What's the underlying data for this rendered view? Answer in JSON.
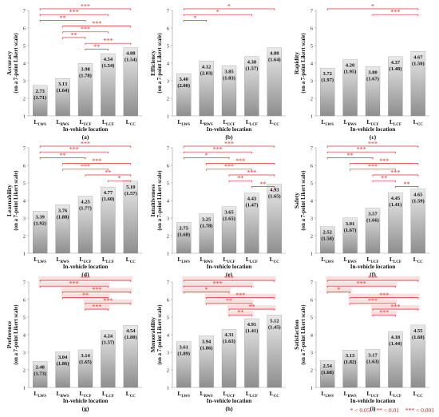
{
  "legend": {
    "p05": "* < 0.05",
    "p01": "** < 0.01",
    "p001": "*** < 0.001"
  },
  "colors": {
    "bar_top": "#e9e9e9",
    "bar_bottom": "#8e8e8e",
    "sig_line": "#e03030",
    "highlight": "#f9d9d9"
  },
  "chart_data": [
    {
      "type": "bar",
      "panel": "(a)",
      "ylabel": "Accuracy",
      "ylabel2": "(on a 7-point Likert scale)",
      "xlabel": "In-vehicle location",
      "categories": [
        "LWS",
        "RWS",
        "UCF",
        "LCF",
        "CC"
      ],
      "values": [
        2.73,
        3.13,
        3.98,
        4.54,
        4.88
      ],
      "sd": [
        1.71,
        1.64,
        1.78,
        1.54,
        1.54
      ],
      "ylim": [
        1,
        7
      ],
      "significance": [
        {
          "from": 0,
          "to": 4,
          "stars": "***"
        },
        {
          "from": 0,
          "to": 3,
          "stars": "***"
        },
        {
          "from": 0,
          "to": 2,
          "stars": "**"
        },
        {
          "from": 1,
          "to": 4,
          "stars": "***"
        },
        {
          "from": 1,
          "to": 3,
          "stars": "***"
        },
        {
          "from": 1,
          "to": 2,
          "stars": "**"
        },
        {
          "from": 2,
          "to": 4,
          "stars": "***"
        },
        {
          "from": 2,
          "to": 3,
          "stars": "**"
        }
      ]
    },
    {
      "type": "bar",
      "panel": "(b)",
      "ylabel": "Efficiency",
      "ylabel2": "(on a 7-point Likert scale)",
      "xlabel": "In-vehicle location",
      "categories": [
        "LWS",
        "RWS",
        "UCF",
        "LCF",
        "CC"
      ],
      "values": [
        3.4,
        4.12,
        3.85,
        4.38,
        4.88
      ],
      "sd": [
        2.0,
        2.03,
        1.83,
        1.57,
        1.64
      ],
      "ylim": [
        1,
        7
      ],
      "significance": [
        {
          "from": 0,
          "to": 4,
          "stars": "*"
        },
        {
          "from": 0,
          "to": 3,
          "stars": "*"
        },
        {
          "from": 0,
          "to": 1,
          "stars": "*"
        }
      ]
    },
    {
      "type": "bar",
      "panel": "(c)",
      "ylabel": "Rapidity",
      "ylabel2": "(on a 7-point Likert scale)",
      "xlabel": "In-vehicle location",
      "categories": [
        "LWS",
        "RWS",
        "UCF",
        "LCF",
        "CC"
      ],
      "values": [
        3.72,
        4.2,
        3.8,
        4.37,
        4.67
      ],
      "sd": [
        1.97,
        1.95,
        1.67,
        1.48,
        1.5
      ],
      "ylim": [
        1,
        7
      ],
      "significance": [
        {
          "from": 0,
          "to": 4,
          "stars": "*"
        },
        {
          "from": 2,
          "to": 4,
          "stars": "***"
        }
      ]
    },
    {
      "type": "bar",
      "panel": "(d)",
      "ylabel": "Learnability",
      "ylabel2": "(on a 7-point Likert scale)",
      "xlabel": "In-vehicle location",
      "categories": [
        "LWS",
        "RWS",
        "UCF",
        "LCF",
        "CC"
      ],
      "values": [
        3.39,
        3.76,
        4.25,
        4.77,
        5.1
      ],
      "sd": [
        1.92,
        1.88,
        1.77,
        1.6,
        1.57
      ],
      "ylim": [
        1,
        7
      ],
      "significance": [
        {
          "from": 0,
          "to": 4,
          "stars": "***"
        },
        {
          "from": 0,
          "to": 3,
          "stars": "***"
        },
        {
          "from": 0,
          "to": 2,
          "stars": "**"
        },
        {
          "from": 1,
          "to": 4,
          "stars": "***"
        },
        {
          "from": 1,
          "to": 3,
          "stars": "***"
        },
        {
          "from": 2,
          "to": 4,
          "stars": "**"
        },
        {
          "from": 3,
          "to": 4,
          "stars": "*"
        }
      ]
    },
    {
      "type": "bar",
      "panel": "(e)",
      "ylabel": "Intuitiveness",
      "ylabel2": "(on a 7-point Likert scale)",
      "xlabel": "In-vehicle location",
      "categories": [
        "LWS",
        "RWS",
        "UCF",
        "LCF",
        "CC"
      ],
      "values": [
        2.75,
        3.25,
        3.65,
        4.43,
        4.93
      ],
      "sd": [
        1.68,
        1.78,
        1.65,
        1.47,
        1.65
      ],
      "ylim": [
        1,
        7
      ],
      "significance": [
        {
          "from": 0,
          "to": 4,
          "stars": "***"
        },
        {
          "from": 0,
          "to": 3,
          "stars": "***"
        },
        {
          "from": 0,
          "to": 2,
          "stars": "*"
        },
        {
          "from": 1,
          "to": 4,
          "stars": "***"
        },
        {
          "from": 1,
          "to": 3,
          "stars": "***"
        },
        {
          "from": 2,
          "to": 4,
          "stars": "***"
        },
        {
          "from": 2,
          "to": 3,
          "stars": "**"
        },
        {
          "from": 3,
          "to": 4,
          "stars": "**"
        }
      ]
    },
    {
      "type": "bar",
      "panel": "(f)",
      "ylabel": "Safety",
      "ylabel2": "(on a 7-point Likert scale)",
      "xlabel": "In-vehicle location",
      "categories": [
        "LWS",
        "RWS",
        "UCF",
        "LCF",
        "CC"
      ],
      "values": [
        2.52,
        3.01,
        3.57,
        4.45,
        4.65
      ],
      "sd": [
        1.58,
        1.67,
        1.66,
        1.41,
        1.59
      ],
      "ylim": [
        1,
        7
      ],
      "significance": [
        {
          "from": 0,
          "to": 4,
          "stars": "***"
        },
        {
          "from": 0,
          "to": 3,
          "stars": "***"
        },
        {
          "from": 0,
          "to": 2,
          "stars": "**"
        },
        {
          "from": 1,
          "to": 4,
          "stars": "***"
        },
        {
          "from": 1,
          "to": 3,
          "stars": "***"
        },
        {
          "from": 2,
          "to": 4,
          "stars": "***"
        },
        {
          "from": 2,
          "to": 3,
          "stars": "**"
        },
        {
          "from": 3,
          "to": 4,
          "stars": "**"
        }
      ]
    },
    {
      "type": "bar",
      "panel": "(g)",
      "ylabel": "Preference",
      "ylabel2": "(on a 7-point Likert scale)",
      "xlabel": "In-vehicle location",
      "categories": [
        "LWS",
        "RWS",
        "UCF",
        "LCF",
        "CC"
      ],
      "values": [
        2.48,
        3.04,
        3.14,
        4.24,
        4.54
      ],
      "sd": [
        1.73,
        1.86,
        1.65,
        1.57,
        1.8
      ],
      "ylim": [
        1,
        7
      ],
      "significance": [
        {
          "from": 0,
          "to": 4,
          "stars": "***"
        },
        {
          "from": 0,
          "to": 3,
          "stars": "***"
        },
        {
          "from": 1,
          "to": 4,
          "stars": "***"
        },
        {
          "from": 1,
          "to": 3,
          "stars": "**"
        },
        {
          "from": 2,
          "to": 4,
          "stars": "***"
        },
        {
          "from": 2,
          "to": 3,
          "stars": "***"
        }
      ]
    },
    {
      "type": "bar",
      "panel": "(h)",
      "ylabel": "Memorability",
      "ylabel2": "(on a 7-point Likert scale)",
      "xlabel": "In-vehicle location",
      "categories": [
        "LWS",
        "RWS",
        "UCF",
        "LCF",
        "CC"
      ],
      "values": [
        3.61,
        3.94,
        4.31,
        4.91,
        5.12
      ],
      "sd": [
        1.89,
        1.86,
        1.63,
        1.41,
        1.45
      ],
      "ylim": [
        1,
        7
      ],
      "significance": [
        {
          "from": 0,
          "to": 4,
          "stars": "***"
        },
        {
          "from": 0,
          "to": 3,
          "stars": "***"
        },
        {
          "from": 0,
          "to": 2,
          "stars": "*"
        },
        {
          "from": 1,
          "to": 4,
          "stars": "***"
        },
        {
          "from": 1,
          "to": 3,
          "stars": "**"
        },
        {
          "from": 2,
          "to": 4,
          "stars": "**"
        },
        {
          "from": 2,
          "to": 3,
          "stars": "**"
        }
      ]
    },
    {
      "type": "bar",
      "panel": "(i)",
      "ylabel": "Satisfaction",
      "ylabel2": "(on a 7-point Likert scale)",
      "xlabel": "In-vehicle location",
      "categories": [
        "LWS",
        "RWS",
        "UCF",
        "LCF",
        "CC"
      ],
      "values": [
        2.54,
        3.13,
        3.17,
        4.18,
        4.55
      ],
      "sd": [
        1.68,
        1.82,
        1.63,
        1.44,
        1.68
      ],
      "ylim": [
        1,
        7
      ],
      "significance": [
        {
          "from": 0,
          "to": 4,
          "stars": "***"
        },
        {
          "from": 0,
          "to": 3,
          "stars": "***"
        },
        {
          "from": 0,
          "to": 1,
          "stars": "*"
        },
        {
          "from": 1,
          "to": 4,
          "stars": "***"
        },
        {
          "from": 1,
          "to": 3,
          "stars": "***"
        },
        {
          "from": 2,
          "to": 4,
          "stars": "***"
        },
        {
          "from": 2,
          "to": 3,
          "stars": "***"
        }
      ]
    }
  ]
}
